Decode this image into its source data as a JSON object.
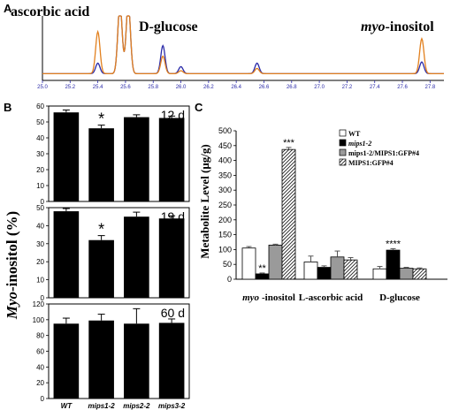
{
  "panels": {
    "a": "A",
    "b": "B",
    "c": "C"
  },
  "chart_data": [
    {
      "panel": "A",
      "type": "line",
      "labels": {
        "ascorbic": "ascorbic acid",
        "glucose": "D-glucose",
        "inositol_prefix": "myo",
        "inositol_suffix": "-inositol"
      },
      "xlim": [
        25.0,
        27.9
      ],
      "xticks": [
        "25.0",
        "25.2",
        "25.4",
        "25.6",
        "25.8",
        "26.0",
        "26.2",
        "26.4",
        "26.6",
        "26.8",
        "27.0",
        "27.2",
        "27.4",
        "27.6",
        "27.8"
      ],
      "series": [
        {
          "color": "#e2801e",
          "peaks": [
            [
              25.4,
              0.72
            ],
            [
              25.56,
              1.2
            ],
            [
              25.62,
              1.2
            ],
            [
              25.87,
              0.3
            ],
            [
              26.0,
              0.05
            ],
            [
              26.55,
              0.09
            ],
            [
              27.74,
              0.6
            ]
          ]
        },
        {
          "color": "#2a2aa8",
          "peaks": [
            [
              25.4,
              0.18
            ],
            [
              25.56,
              1.2
            ],
            [
              25.62,
              1.2
            ],
            [
              25.87,
              0.48
            ],
            [
              26.0,
              0.12
            ],
            [
              26.55,
              0.18
            ],
            [
              27.74,
              0.2
            ]
          ]
        }
      ]
    },
    {
      "panel": "B",
      "type": "bar",
      "ylabel_prefix": "Myo",
      "ylabel_suffix": "-inositol (%)",
      "categories": [
        "WT",
        "mips1-2",
        "mips2-2",
        "mips3-2"
      ],
      "subplots": [
        {
          "label": "12 d",
          "ylim": [
            0,
            60
          ],
          "yticks": [
            "0",
            "10",
            "20",
            "30",
            "40",
            "50",
            "60"
          ],
          "values": [
            56,
            46,
            53,
            52.5
          ],
          "errors": [
            1.5,
            2,
            1.5,
            1.2
          ],
          "marks": [
            "",
            "*",
            "",
            ""
          ]
        },
        {
          "label": "19 d",
          "ylim": [
            0,
            50
          ],
          "yticks": [
            "0",
            "10",
            "20",
            "30",
            "40",
            "50"
          ],
          "values": [
            48,
            32,
            45,
            44
          ],
          "errors": [
            1.5,
            2.5,
            2.5,
            1.5
          ],
          "marks": [
            "",
            "*",
            "",
            ""
          ]
        },
        {
          "label": "60 d",
          "ylim": [
            0,
            120
          ],
          "yticks": [
            "0",
            "20",
            "40",
            "60",
            "80",
            "100",
            "120"
          ],
          "values": [
            95,
            99,
            95,
            96
          ],
          "errors": [
            7,
            8,
            19,
            5
          ],
          "marks": [
            "",
            "",
            "",
            ""
          ]
        }
      ]
    },
    {
      "panel": "C",
      "type": "bar",
      "ylabel": "Metabolite Level (μg/g)",
      "ylim": [
        0,
        500
      ],
      "yticks": [
        "0",
        "50",
        "100",
        "150",
        "200",
        "250",
        "300",
        "350",
        "400",
        "450",
        "500"
      ],
      "groups": [
        {
          "label_prefix": "myo",
          "label_suffix": "-inositol"
        },
        {
          "label_prefix": "",
          "label_suffix": "L-ascorbic acid"
        },
        {
          "label_prefix": "",
          "label_suffix": "D-glucose"
        }
      ],
      "series": [
        {
          "name": "WT",
          "values": [
            105,
            58,
            35
          ],
          "errors": [
            5,
            20,
            8
          ]
        },
        {
          "name": "mips1-2",
          "values": [
            18,
            40,
            98
          ],
          "errors": [
            3,
            5,
            5
          ]
        },
        {
          "name": "mips1-2/MIPS1:GFP#4",
          "values": [
            115,
            75,
            37
          ],
          "errors": [
            3,
            20,
            3
          ]
        },
        {
          "name": "MIPS1:GFP#4",
          "values": [
            437,
            65,
            35
          ],
          "errors": [
            7,
            8,
            3
          ]
        }
      ],
      "marks": [
        {
          "group": 0,
          "series": 1,
          "text": "**"
        },
        {
          "group": 0,
          "series": 3,
          "text": "***"
        },
        {
          "group": 2,
          "series": 1,
          "text": "****"
        }
      ],
      "legend": "top-right"
    }
  ]
}
